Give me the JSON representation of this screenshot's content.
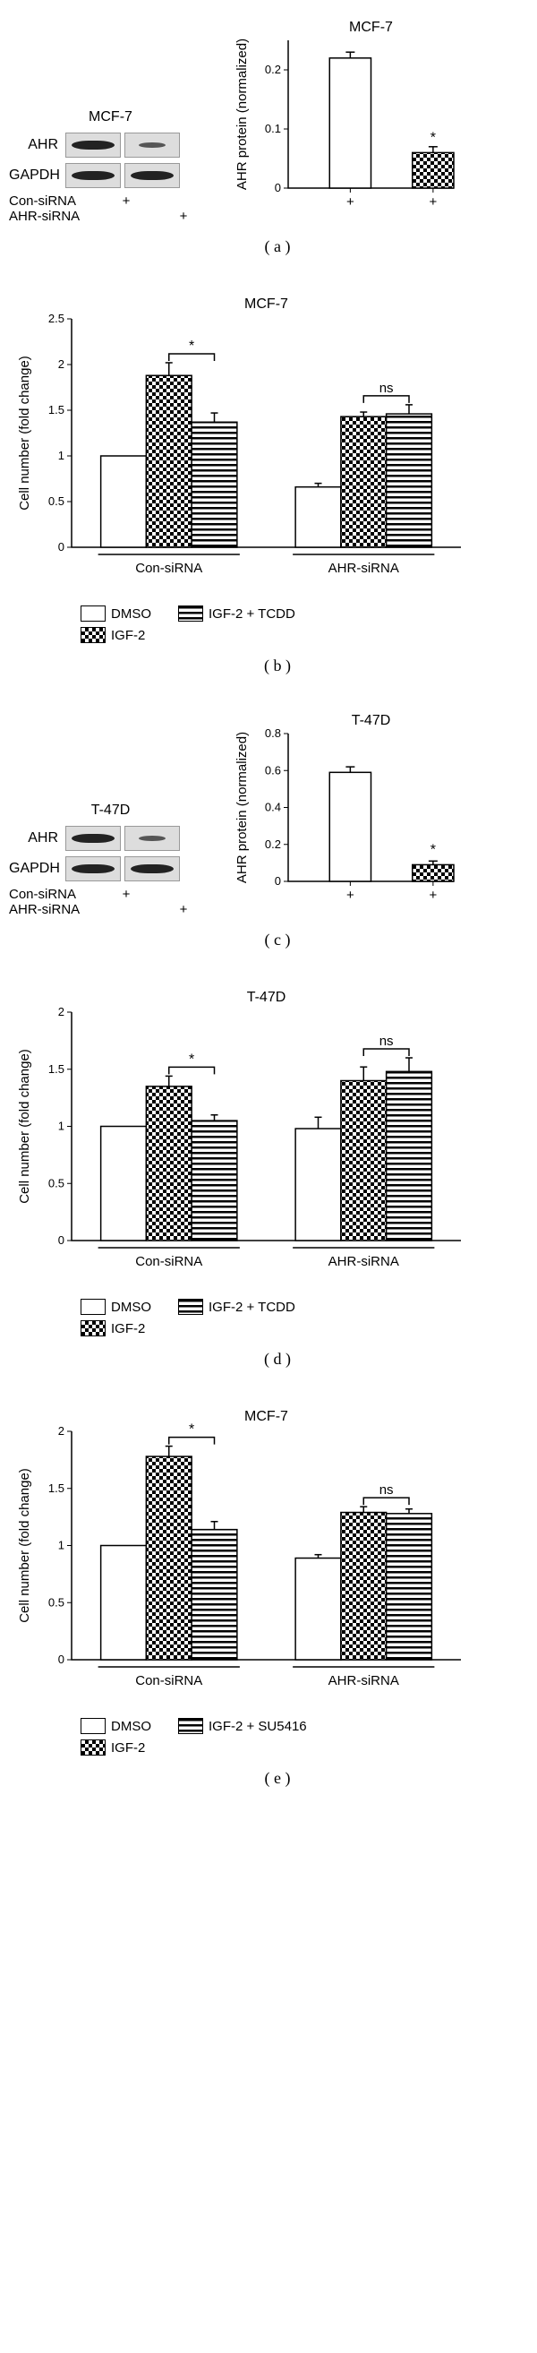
{
  "panel_a": {
    "blot": {
      "title": "MCF-7",
      "rows": [
        "AHR",
        "GAPDH"
      ],
      "cond": [
        "Con-siRNA",
        "AHR-siRNA"
      ]
    },
    "chart": {
      "title": "MCF-7",
      "ylabel": "AHR protein (normalized)",
      "ylim": 0.25,
      "yticks": [
        0,
        0.1,
        0.2
      ],
      "bars": [
        {
          "v": 0.22,
          "e": 0.01,
          "p": "open"
        },
        {
          "v": 0.06,
          "e": 0.01,
          "p": "check",
          "sig": "*"
        }
      ],
      "xplus": [
        "+",
        "+"
      ]
    },
    "caption": "( a )"
  },
  "panel_b": {
    "chart": {
      "title": "MCF-7",
      "ylabel": "Cell number (fold change)",
      "ylim": 2.5,
      "yticks": [
        0,
        0.5,
        1.0,
        1.5,
        2.0,
        2.5
      ],
      "groups": [
        "Con-siRNA",
        "AHR-siRNA"
      ],
      "bars": [
        [
          {
            "v": 1.0,
            "e": 0,
            "p": "open"
          },
          {
            "v": 1.88,
            "e": 0.14,
            "p": "check"
          },
          {
            "v": 1.37,
            "e": 0.1,
            "p": "stripe"
          }
        ],
        [
          {
            "v": 0.66,
            "e": 0.04,
            "p": "open"
          },
          {
            "v": 1.43,
            "e": 0.05,
            "p": "check"
          },
          {
            "v": 1.46,
            "e": 0.1,
            "p": "stripe"
          }
        ]
      ],
      "brackets": [
        {
          "g": 0,
          "a": 1,
          "b": 2,
          "lab": "*"
        },
        {
          "g": 1,
          "a": 1,
          "b": 2,
          "lab": "ns"
        }
      ]
    },
    "legend": [
      [
        "DMSO",
        "open"
      ],
      [
        "IGF-2",
        "check"
      ],
      [
        "IGF-2 + TCDD",
        "stripe"
      ]
    ],
    "caption": "( b )"
  },
  "panel_c": {
    "blot": {
      "title": "T-47D",
      "rows": [
        "AHR",
        "GAPDH"
      ],
      "cond": [
        "Con-siRNA",
        "AHR-siRNA"
      ]
    },
    "chart": {
      "title": "T-47D",
      "ylabel": "AHR protein (normalized)",
      "ylim": 0.8,
      "yticks": [
        0,
        0.2,
        0.4,
        0.6,
        0.8
      ],
      "bars": [
        {
          "v": 0.59,
          "e": 0.03,
          "p": "open"
        },
        {
          "v": 0.09,
          "e": 0.02,
          "p": "check",
          "sig": "*"
        }
      ],
      "xplus": [
        "+",
        "+"
      ]
    },
    "caption": "( c )"
  },
  "panel_d": {
    "chart": {
      "title": "T-47D",
      "ylabel": "Cell number (fold change)",
      "ylim": 2.0,
      "yticks": [
        0,
        0.5,
        1.0,
        1.5,
        2.0
      ],
      "groups": [
        "Con-siRNA",
        "AHR-siRNA"
      ],
      "bars": [
        [
          {
            "v": 1.0,
            "e": 0,
            "p": "open"
          },
          {
            "v": 1.35,
            "e": 0.09,
            "p": "check"
          },
          {
            "v": 1.05,
            "e": 0.05,
            "p": "stripe"
          }
        ],
        [
          {
            "v": 0.98,
            "e": 0.1,
            "p": "open"
          },
          {
            "v": 1.4,
            "e": 0.12,
            "p": "check"
          },
          {
            "v": 1.48,
            "e": 0.12,
            "p": "stripe"
          }
        ]
      ],
      "brackets": [
        {
          "g": 0,
          "a": 1,
          "b": 2,
          "lab": "*"
        },
        {
          "g": 1,
          "a": 1,
          "b": 2,
          "lab": "ns"
        }
      ]
    },
    "legend": [
      [
        "DMSO",
        "open"
      ],
      [
        "IGF-2",
        "check"
      ],
      [
        "IGF-2 + TCDD",
        "stripe"
      ]
    ],
    "caption": "( d )"
  },
  "panel_e": {
    "chart": {
      "title": "MCF-7",
      "ylabel": "Cell number (fold change)",
      "ylim": 2.0,
      "yticks": [
        0,
        0.5,
        1.0,
        1.5,
        2.0
      ],
      "groups": [
        "Con-siRNA",
        "AHR-siRNA"
      ],
      "bars": [
        [
          {
            "v": 1.0,
            "e": 0,
            "p": "open"
          },
          {
            "v": 1.78,
            "e": 0.09,
            "p": "check"
          },
          {
            "v": 1.14,
            "e": 0.07,
            "p": "stripe"
          }
        ],
        [
          {
            "v": 0.89,
            "e": 0.03,
            "p": "open"
          },
          {
            "v": 1.29,
            "e": 0.05,
            "p": "check"
          },
          {
            "v": 1.28,
            "e": 0.04,
            "p": "stripe"
          }
        ]
      ],
      "brackets": [
        {
          "g": 0,
          "a": 1,
          "b": 2,
          "lab": "*"
        },
        {
          "g": 1,
          "a": 1,
          "b": 2,
          "lab": "ns"
        }
      ]
    },
    "legend": [
      [
        "DMSO",
        "open"
      ],
      [
        "IGF-2",
        "check"
      ],
      [
        "IGF-2 + SU5416",
        "stripe"
      ]
    ],
    "caption": "( e )"
  }
}
